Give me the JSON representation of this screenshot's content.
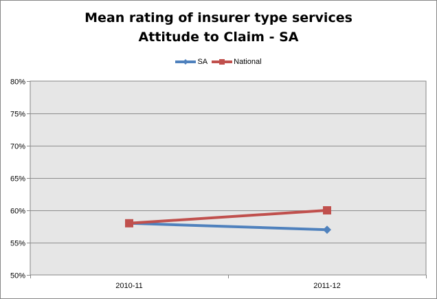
{
  "chart_data": {
    "type": "line",
    "title_lines": [
      "Mean rating of insurer type services",
      "Attitude to Claim - SA"
    ],
    "categories": [
      "2010-11",
      "2011-12"
    ],
    "series": [
      {
        "name": "SA",
        "values": [
          58,
          57
        ],
        "color": "#4F81BD",
        "marker": "diamond"
      },
      {
        "name": "National",
        "values": [
          58,
          60
        ],
        "color": "#C0504D",
        "marker": "square"
      }
    ],
    "y_ticks": [
      "50%",
      "55%",
      "60%",
      "65%",
      "70%",
      "75%",
      "80%"
    ],
    "ylim": [
      50,
      80
    ],
    "y_step": 5,
    "grid": true,
    "legend_position": "top",
    "plot_background": "#E6E6E6"
  }
}
